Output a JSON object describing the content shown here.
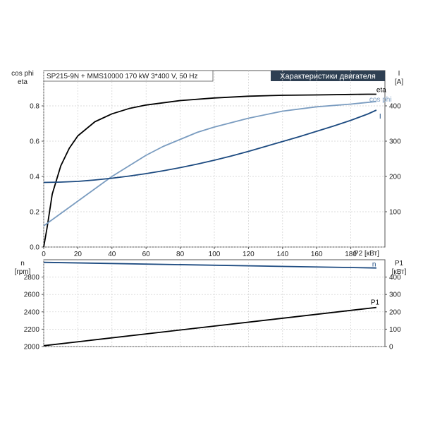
{
  "chart_data": [
    {
      "type": "line",
      "header_left": "SP215-9N + MMS10000   170 kW  3*400 V, 50 Hz",
      "header_right": "Характеристики двигателя",
      "ylabel_left": [
        "cos phi",
        "eta"
      ],
      "ylabel_right": [
        "I",
        "[A]"
      ],
      "xlabel": "P2 [кВт]",
      "xlim": [
        0,
        200
      ],
      "ylim_left": [
        0,
        1.0
      ],
      "ylim_right": [
        0,
        500
      ],
      "xticks": [
        0,
        20,
        40,
        60,
        80,
        100,
        120,
        140,
        160,
        180
      ],
      "yticks_left": [
        0.0,
        0.2,
        0.4,
        0.6,
        0.8
      ],
      "yticks_right": [
        100,
        200,
        300,
        400
      ],
      "ytick_labels_left": [
        "0.0",
        "0.2",
        "0.4",
        "0.6",
        "0.8"
      ],
      "grid": true,
      "series": [
        {
          "name": "eta",
          "axis": "left",
          "color": "#000000",
          "x": [
            0,
            2,
            5,
            10,
            15,
            20,
            30,
            40,
            50,
            60,
            80,
            100,
            120,
            140,
            160,
            180,
            190,
            195
          ],
          "y": [
            0.0,
            0.11,
            0.3,
            0.46,
            0.56,
            0.63,
            0.71,
            0.755,
            0.785,
            0.805,
            0.83,
            0.845,
            0.855,
            0.86,
            0.862,
            0.865,
            0.866,
            0.866
          ]
        },
        {
          "name": "cos phi",
          "axis": "left",
          "color": "#7a9cc0",
          "x": [
            0,
            10,
            20,
            30,
            40,
            50,
            60,
            70,
            80,
            90,
            100,
            120,
            140,
            160,
            180,
            195
          ],
          "y": [
            0.12,
            0.19,
            0.26,
            0.33,
            0.4,
            0.46,
            0.52,
            0.57,
            0.61,
            0.65,
            0.68,
            0.73,
            0.77,
            0.795,
            0.81,
            0.825
          ]
        },
        {
          "name": "I",
          "axis": "right",
          "color": "#1c4a80",
          "x": [
            0,
            10,
            20,
            30,
            40,
            50,
            60,
            70,
            80,
            90,
            100,
            110,
            120,
            130,
            140,
            150,
            160,
            170,
            180,
            190,
            195
          ],
          "y": [
            183,
            184,
            186,
            190,
            195,
            201,
            208,
            216,
            225,
            235,
            246,
            258,
            271,
            285,
            299,
            313,
            328,
            343,
            359,
            377,
            388
          ]
        }
      ]
    },
    {
      "type": "line",
      "ylabel_left": [
        "n",
        "[rpm]"
      ],
      "ylabel_right": [
        "P1",
        "[кВт]"
      ],
      "xlim": [
        0,
        200
      ],
      "ylim_left": [
        2000,
        3000
      ],
      "ylim_right": [
        0,
        500
      ],
      "yticks_left": [
        2000,
        2200,
        2400,
        2600,
        2800
      ],
      "yticks_right": [
        0,
        100,
        200,
        300,
        400
      ],
      "grid": true,
      "series": [
        {
          "name": "n",
          "axis": "left",
          "color": "#1c4a80",
          "x": [
            0,
            195
          ],
          "y": [
            2970,
            2905
          ]
        },
        {
          "name": "P1",
          "axis": "right",
          "color": "#000000",
          "x": [
            0,
            195
          ],
          "y": [
            5,
            225
          ]
        }
      ]
    }
  ]
}
